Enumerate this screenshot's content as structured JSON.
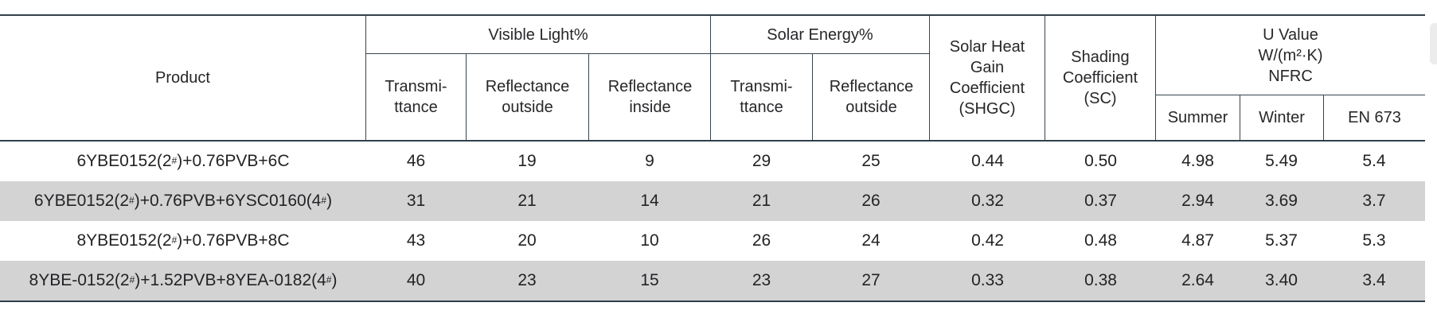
{
  "colors": {
    "line": "#36454f",
    "heavy_line": "#31414c",
    "zebra_row": "#d3d3d4",
    "text": "#27272a",
    "background": "#ffffff"
  },
  "table": {
    "header": {
      "product": "Product",
      "groups": [
        {
          "label": "Visible Light%",
          "subs": [
            "Transmi-\nttance",
            "Reflectance\noutside",
            "Reflectance\ninside"
          ]
        },
        {
          "label": "Solar Energy%",
          "subs": [
            "Transmi-\nttance",
            "Reflectance\noutside"
          ]
        },
        {
          "label": "Solar Heat\nGain\nCoefficient\n(SHGC)"
        },
        {
          "label": "Shading\nCoefficient\n(SC)"
        },
        {
          "label": "U Value\nW/(m²·K)\nNFRC",
          "subs": [
            "Summer",
            "Winter",
            "EN 673"
          ]
        }
      ]
    },
    "rows": [
      {
        "product": "6YBE0152(2#)+0.76PVB+6C",
        "values": [
          "46",
          "19",
          "9",
          "29",
          "25",
          "0.44",
          "0.50",
          "4.98",
          "5.49",
          "5.4"
        ]
      },
      {
        "product": "6YBE0152(2#)+0.76PVB+6YSC0160(4#)",
        "values": [
          "31",
          "21",
          "14",
          "21",
          "26",
          "0.32",
          "0.37",
          "2.94",
          "3.69",
          "3.7"
        ]
      },
      {
        "product": "8YBE0152(2#)+0.76PVB+8C",
        "values": [
          "43",
          "20",
          "10",
          "26",
          "24",
          "0.42",
          "0.48",
          "4.87",
          "5.37",
          "5.3"
        ]
      },
      {
        "product": "8YBE-0152(2#)+1.52PVB+8YEA-0182(4#)",
        "values": [
          "40",
          "23",
          "15",
          "23",
          "27",
          "0.33",
          "0.38",
          "2.64",
          "3.40",
          "3.4"
        ]
      }
    ]
  }
}
